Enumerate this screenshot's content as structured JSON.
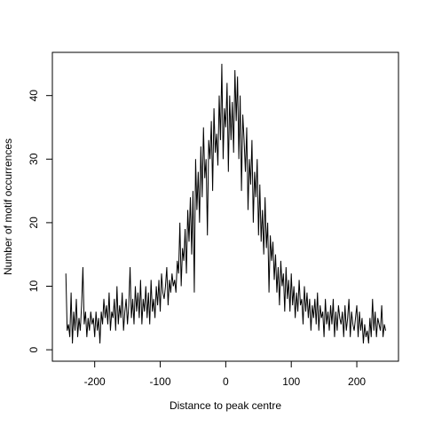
{
  "chart_data": {
    "type": "line",
    "xlabel": "Distance to peak centre",
    "ylabel": "Number of motif occurrences",
    "color": "#000000",
    "xlim": [
      -264.6,
      263.6
    ],
    "ylim": [
      -1.8,
      46.8
    ],
    "xticks": [
      -200,
      -100,
      0,
      100,
      200
    ],
    "yticks": [
      0,
      10,
      20,
      30,
      40
    ],
    "x": [
      -244,
      -242,
      -240,
      -238,
      -236,
      -234,
      -232,
      -230,
      -228,
      -226,
      -224,
      -222,
      -220,
      -218,
      -216,
      -214,
      -212,
      -210,
      -208,
      -206,
      -204,
      -202,
      -200,
      -198,
      -196,
      -194,
      -192,
      -190,
      -188,
      -186,
      -184,
      -182,
      -180,
      -178,
      -176,
      -174,
      -172,
      -170,
      -168,
      -166,
      -164,
      -162,
      -160,
      -158,
      -156,
      -154,
      -152,
      -150,
      -148,
      -146,
      -144,
      -142,
      -140,
      -138,
      -136,
      -134,
      -132,
      -130,
      -128,
      -126,
      -124,
      -122,
      -120,
      -118,
      -116,
      -114,
      -112,
      -110,
      -108,
      -106,
      -104,
      -102,
      -100,
      -98,
      -96,
      -94,
      -92,
      -90,
      -88,
      -86,
      -84,
      -82,
      -80,
      -78,
      -76,
      -74,
      -72,
      -70,
      -68,
      -66,
      -64,
      -62,
      -60,
      -58,
      -56,
      -54,
      -52,
      -50,
      -48,
      -46,
      -44,
      -42,
      -40,
      -38,
      -36,
      -34,
      -32,
      -30,
      -28,
      -26,
      -24,
      -22,
      -20,
      -18,
      -16,
      -14,
      -12,
      -10,
      -8,
      -6,
      -4,
      -2,
      0,
      2,
      4,
      6,
      8,
      10,
      12,
      14,
      16,
      18,
      20,
      22,
      24,
      26,
      28,
      30,
      32,
      34,
      36,
      38,
      40,
      42,
      44,
      46,
      48,
      50,
      52,
      54,
      56,
      58,
      60,
      62,
      64,
      66,
      68,
      70,
      72,
      74,
      76,
      78,
      80,
      82,
      84,
      86,
      88,
      90,
      92,
      94,
      96,
      98,
      100,
      102,
      104,
      106,
      108,
      110,
      112,
      114,
      116,
      118,
      120,
      122,
      124,
      126,
      128,
      130,
      132,
      134,
      136,
      138,
      140,
      142,
      144,
      146,
      148,
      150,
      152,
      154,
      156,
      158,
      160,
      162,
      164,
      166,
      168,
      170,
      172,
      174,
      176,
      178,
      180,
      182,
      184,
      186,
      188,
      190,
      192,
      194,
      196,
      198,
      200,
      202,
      204,
      206,
      208,
      210,
      212,
      214,
      216,
      218,
      220,
      222,
      224,
      226,
      228,
      230,
      232,
      234,
      236,
      238,
      240,
      242,
      244
    ],
    "values": [
      12,
      3,
      4,
      2,
      9,
      1,
      6,
      3,
      8,
      2,
      5,
      3,
      7,
      13,
      4,
      6,
      2,
      5,
      3,
      6,
      4,
      5,
      2,
      6,
      3,
      5,
      1,
      6,
      4,
      8,
      5,
      7,
      4,
      9,
      3,
      6,
      5,
      8,
      3,
      10,
      4,
      7,
      5,
      9,
      3,
      6,
      8,
      4,
      7,
      13,
      5,
      8,
      4,
      10,
      6,
      9,
      5,
      11,
      4,
      8,
      6,
      10,
      5,
      9,
      4,
      11,
      6,
      8,
      5,
      10,
      7,
      11,
      6,
      12,
      9,
      8,
      10,
      13,
      7,
      11,
      9,
      12,
      10,
      11,
      9,
      14,
      12,
      20,
      10,
      16,
      14,
      19,
      12,
      22,
      17,
      24,
      15,
      25,
      9,
      30,
      22,
      28,
      20,
      32,
      24,
      35,
      27,
      30,
      18,
      33,
      30,
      36,
      25,
      38,
      31,
      34,
      29,
      40,
      33,
      45,
      30,
      38,
      35,
      42,
      28,
      40,
      33,
      39,
      31,
      44,
      36,
      43,
      30,
      40,
      25,
      37,
      33,
      28,
      35,
      22,
      30,
      26,
      33,
      20,
      28,
      24,
      30,
      18,
      26,
      17,
      22,
      15,
      24,
      16,
      20,
      9,
      18,
      14,
      17,
      11,
      15,
      9,
      13,
      7,
      14,
      10,
      12,
      6,
      13,
      8,
      11,
      6,
      12,
      7,
      10,
      5,
      9,
      6,
      11,
      7,
      8,
      4,
      10,
      6,
      9,
      5,
      8,
      3,
      7,
      5,
      8,
      4,
      9,
      3,
      7,
      5,
      6,
      2,
      8,
      4,
      6,
      3,
      7,
      4,
      8,
      2,
      6,
      3,
      7,
      5,
      4,
      6,
      2,
      7,
      3,
      5,
      8,
      2,
      6,
      4,
      3,
      5,
      7,
      2,
      6,
      3,
      5,
      1,
      4,
      2,
      3,
      1,
      5,
      2,
      8,
      3,
      6,
      2,
      5,
      4,
      3,
      7,
      2,
      4,
      3
    ]
  }
}
